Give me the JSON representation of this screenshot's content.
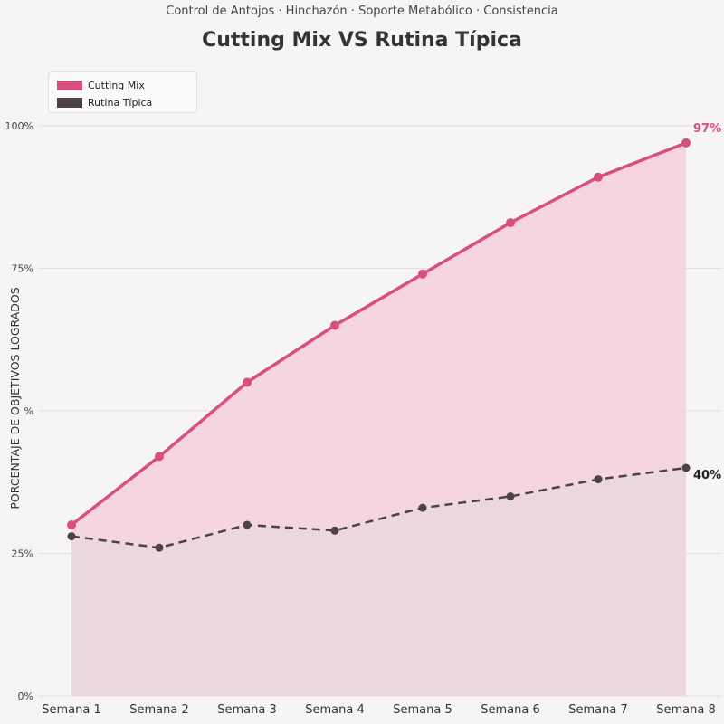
{
  "chart_data": {
    "type": "area",
    "subtitle": "Control de Antojos  ·  Hinchazón  ·  Soporte Metabólico  ·  Consistencia",
    "title": "Cutting Mix VS Rutina Típica",
    "xlabel": "",
    "ylabel": "PORCENTAJE DE OBJETIVOS LOGRADOS",
    "categories": [
      "Semana 1",
      "Semana 2",
      "Semana 3",
      "Semana 4",
      "Semana 5",
      "Semana 6",
      "Semana 7",
      "Semana 8"
    ],
    "y_ticks": [
      {
        "value": 0,
        "label": "0%"
      },
      {
        "value": 25,
        "label": "25%"
      },
      {
        "value": 50,
        "label": "%"
      },
      {
        "value": 75,
        "label": "75%"
      },
      {
        "value": 100,
        "label": "100%"
      }
    ],
    "ylim": [
      0,
      100
    ],
    "grid": true,
    "legend_position": "top-left",
    "series": [
      {
        "name": "Cutting Mix",
        "values": [
          30,
          42,
          55,
          65,
          74,
          83,
          91,
          97
        ],
        "color": "#d94f7e",
        "fill": "#f5d3de",
        "style": "solid",
        "end_label": "97%",
        "end_label_color": "#d94f7e"
      },
      {
        "name": "Rutina Típica",
        "values": [
          28,
          26,
          30,
          29,
          33,
          35,
          38,
          40
        ],
        "color": "#4a4444",
        "fill": "#e8d8db",
        "style": "dashed",
        "end_label": "40%",
        "end_label_color": "#222222"
      }
    ]
  }
}
